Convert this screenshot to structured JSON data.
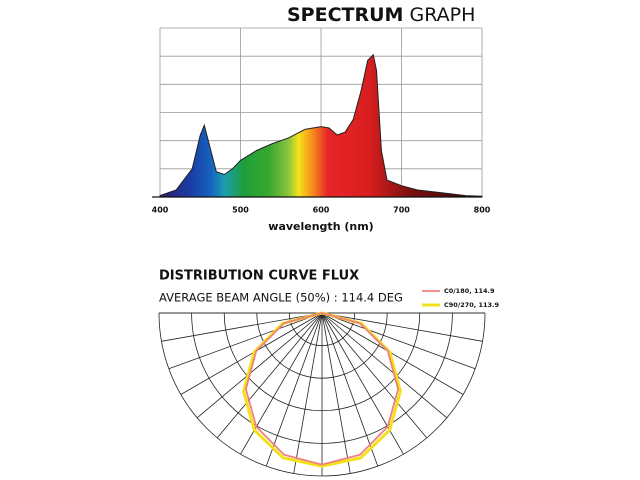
{
  "chart_data": [
    {
      "type": "area",
      "title": [
        "SPECTRUM",
        "GRAPH"
      ],
      "x_label": "wavelength (nm)",
      "x": [
        400,
        420,
        440,
        450,
        455,
        460,
        470,
        480,
        490,
        500,
        520,
        540,
        560,
        580,
        600,
        610,
        620,
        630,
        640,
        650,
        658,
        665,
        669,
        675,
        682,
        700,
        720,
        750,
        780,
        800
      ],
      "values": [
        0.05,
        0.25,
        1.0,
        2.2,
        2.55,
        2.0,
        0.9,
        0.8,
        1.0,
        1.3,
        1.65,
        1.9,
        2.1,
        2.4,
        2.5,
        2.45,
        2.2,
        2.3,
        2.75,
        3.8,
        4.85,
        5.05,
        4.5,
        1.65,
        0.6,
        0.4,
        0.25,
        0.15,
        0.05,
        0.03
      ],
      "xlim": [
        400,
        800
      ],
      "xticks": [
        400,
        500,
        600,
        700,
        800
      ],
      "ylim": [
        0,
        6
      ],
      "yticks": [
        0,
        1,
        2,
        3,
        4,
        5,
        6
      ],
      "grid": true
    },
    {
      "type": "polar",
      "title": "DISTRIBUTION CURVE FLUX",
      "subtitle": "AVERAGE BEAM ANGLE  (50%) : 114.4 DEG",
      "angles": [
        -90,
        -75,
        -60,
        -45,
        -30,
        -15,
        0,
        15,
        30,
        45,
        60,
        75,
        90
      ],
      "series": [
        {
          "name": "C0/180, 114.9",
          "color": "#f08080",
          "values": [
            0,
            1.2,
            2.33,
            3.3,
            4.03,
            4.5,
            4.65,
            4.5,
            4.03,
            3.3,
            2.33,
            1.2,
            0
          ]
        },
        {
          "name": "C90/270, 113.9",
          "color": "#f2e21a",
          "values": [
            0,
            1.25,
            2.4,
            3.4,
            4.15,
            4.6,
            4.7,
            4.6,
            4.15,
            3.4,
            2.4,
            1.25,
            0
          ]
        }
      ],
      "rlim": [
        0,
        5
      ],
      "rticks": [
        1,
        2,
        3,
        4,
        5
      ],
      "theta_ticks": [
        -90,
        -80,
        -70,
        -60,
        -50,
        -40,
        -30,
        -20,
        -10,
        0,
        10,
        20,
        30,
        40,
        50,
        60,
        70,
        80,
        90
      ]
    }
  ]
}
